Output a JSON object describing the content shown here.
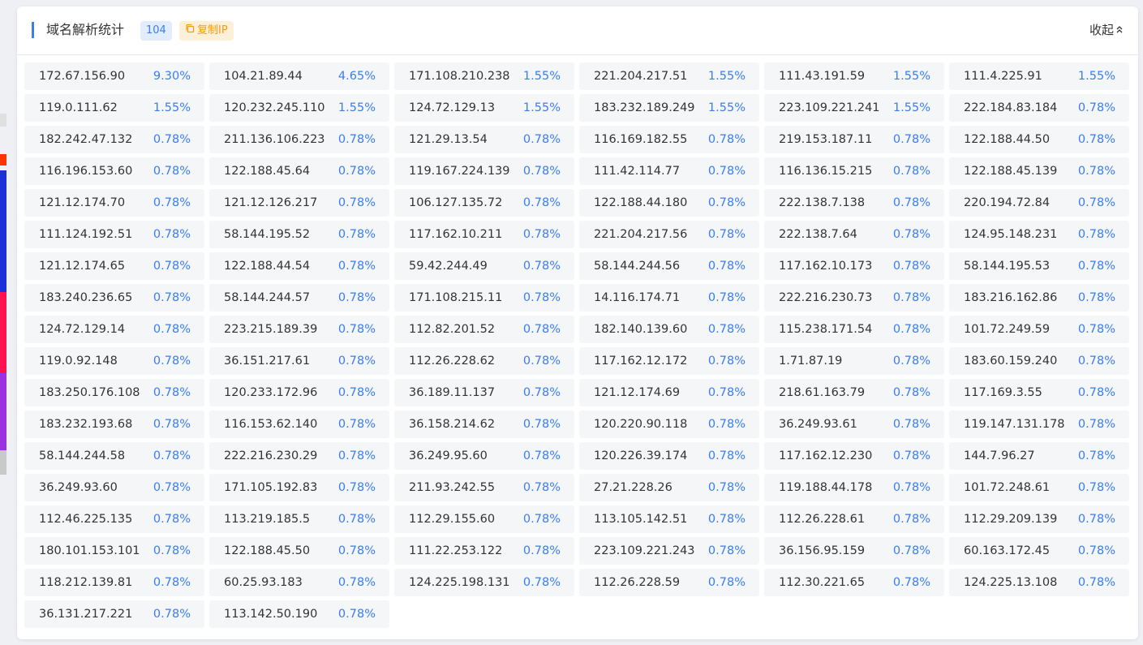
{
  "header": {
    "title": "域名解析统计",
    "count": "104",
    "copy_label": "复制IP",
    "collapse_label": "收起"
  },
  "colors": {
    "accent": "#3a7ef1",
    "copy_bg": "#fdf0d8",
    "copy_fg": "#f39c12",
    "cell_bg": "#f5f6f8"
  },
  "icons": {
    "copy": "copy-icon",
    "collapse": "chevron-up-double-icon"
  },
  "ips": [
    {
      "ip": "172.67.156.90",
      "pct": "9.30%"
    },
    {
      "ip": "104.21.89.44",
      "pct": "4.65%"
    },
    {
      "ip": "171.108.210.238",
      "pct": "1.55%"
    },
    {
      "ip": "221.204.217.51",
      "pct": "1.55%"
    },
    {
      "ip": "111.43.191.59",
      "pct": "1.55%"
    },
    {
      "ip": "111.4.225.91",
      "pct": "1.55%"
    },
    {
      "ip": "119.0.111.62",
      "pct": "1.55%"
    },
    {
      "ip": "120.232.245.110",
      "pct": "1.55%"
    },
    {
      "ip": "124.72.129.13",
      "pct": "1.55%"
    },
    {
      "ip": "183.232.189.249",
      "pct": "1.55%"
    },
    {
      "ip": "223.109.221.241",
      "pct": "1.55%"
    },
    {
      "ip": "222.184.83.184",
      "pct": "0.78%"
    },
    {
      "ip": "182.242.47.132",
      "pct": "0.78%"
    },
    {
      "ip": "211.136.106.223",
      "pct": "0.78%"
    },
    {
      "ip": "121.29.13.54",
      "pct": "0.78%"
    },
    {
      "ip": "116.169.182.55",
      "pct": "0.78%"
    },
    {
      "ip": "219.153.187.11",
      "pct": "0.78%"
    },
    {
      "ip": "122.188.44.50",
      "pct": "0.78%"
    },
    {
      "ip": "116.196.153.60",
      "pct": "0.78%"
    },
    {
      "ip": "122.188.45.64",
      "pct": "0.78%"
    },
    {
      "ip": "119.167.224.139",
      "pct": "0.78%"
    },
    {
      "ip": "111.42.114.77",
      "pct": "0.78%"
    },
    {
      "ip": "116.136.15.215",
      "pct": "0.78%"
    },
    {
      "ip": "122.188.45.139",
      "pct": "0.78%"
    },
    {
      "ip": "121.12.174.70",
      "pct": "0.78%"
    },
    {
      "ip": "121.12.126.217",
      "pct": "0.78%"
    },
    {
      "ip": "106.127.135.72",
      "pct": "0.78%"
    },
    {
      "ip": "122.188.44.180",
      "pct": "0.78%"
    },
    {
      "ip": "222.138.7.138",
      "pct": "0.78%"
    },
    {
      "ip": "220.194.72.84",
      "pct": "0.78%"
    },
    {
      "ip": "111.124.192.51",
      "pct": "0.78%"
    },
    {
      "ip": "58.144.195.52",
      "pct": "0.78%"
    },
    {
      "ip": "117.162.10.211",
      "pct": "0.78%"
    },
    {
      "ip": "221.204.217.56",
      "pct": "0.78%"
    },
    {
      "ip": "222.138.7.64",
      "pct": "0.78%"
    },
    {
      "ip": "124.95.148.231",
      "pct": "0.78%"
    },
    {
      "ip": "121.12.174.65",
      "pct": "0.78%"
    },
    {
      "ip": "122.188.44.54",
      "pct": "0.78%"
    },
    {
      "ip": "59.42.244.49",
      "pct": "0.78%"
    },
    {
      "ip": "58.144.244.56",
      "pct": "0.78%"
    },
    {
      "ip": "117.162.10.173",
      "pct": "0.78%"
    },
    {
      "ip": "58.144.195.53",
      "pct": "0.78%"
    },
    {
      "ip": "183.240.236.65",
      "pct": "0.78%"
    },
    {
      "ip": "58.144.244.57",
      "pct": "0.78%"
    },
    {
      "ip": "171.108.215.11",
      "pct": "0.78%"
    },
    {
      "ip": "14.116.174.71",
      "pct": "0.78%"
    },
    {
      "ip": "222.216.230.73",
      "pct": "0.78%"
    },
    {
      "ip": "183.216.162.86",
      "pct": "0.78%"
    },
    {
      "ip": "124.72.129.14",
      "pct": "0.78%"
    },
    {
      "ip": "223.215.189.39",
      "pct": "0.78%"
    },
    {
      "ip": "112.82.201.52",
      "pct": "0.78%"
    },
    {
      "ip": "182.140.139.60",
      "pct": "0.78%"
    },
    {
      "ip": "115.238.171.54",
      "pct": "0.78%"
    },
    {
      "ip": "101.72.249.59",
      "pct": "0.78%"
    },
    {
      "ip": "119.0.92.148",
      "pct": "0.78%"
    },
    {
      "ip": "36.151.217.61",
      "pct": "0.78%"
    },
    {
      "ip": "112.26.228.62",
      "pct": "0.78%"
    },
    {
      "ip": "117.162.12.172",
      "pct": "0.78%"
    },
    {
      "ip": "1.71.87.19",
      "pct": "0.78%"
    },
    {
      "ip": "183.60.159.240",
      "pct": "0.78%"
    },
    {
      "ip": "183.250.176.108",
      "pct": "0.78%"
    },
    {
      "ip": "120.233.172.96",
      "pct": "0.78%"
    },
    {
      "ip": "36.189.11.137",
      "pct": "0.78%"
    },
    {
      "ip": "121.12.174.69",
      "pct": "0.78%"
    },
    {
      "ip": "218.61.163.79",
      "pct": "0.78%"
    },
    {
      "ip": "117.169.3.55",
      "pct": "0.78%"
    },
    {
      "ip": "183.232.193.68",
      "pct": "0.78%"
    },
    {
      "ip": "116.153.62.140",
      "pct": "0.78%"
    },
    {
      "ip": "36.158.214.62",
      "pct": "0.78%"
    },
    {
      "ip": "120.220.90.118",
      "pct": "0.78%"
    },
    {
      "ip": "36.249.93.61",
      "pct": "0.78%"
    },
    {
      "ip": "119.147.131.178",
      "pct": "0.78%"
    },
    {
      "ip": "58.144.244.58",
      "pct": "0.78%"
    },
    {
      "ip": "222.216.230.29",
      "pct": "0.78%"
    },
    {
      "ip": "36.249.95.60",
      "pct": "0.78%"
    },
    {
      "ip": "120.226.39.174",
      "pct": "0.78%"
    },
    {
      "ip": "117.162.12.230",
      "pct": "0.78%"
    },
    {
      "ip": "144.7.96.27",
      "pct": "0.78%"
    },
    {
      "ip": "36.249.93.60",
      "pct": "0.78%"
    },
    {
      "ip": "171.105.192.83",
      "pct": "0.78%"
    },
    {
      "ip": "211.93.242.55",
      "pct": "0.78%"
    },
    {
      "ip": "27.21.228.26",
      "pct": "0.78%"
    },
    {
      "ip": "119.188.44.178",
      "pct": "0.78%"
    },
    {
      "ip": "101.72.248.61",
      "pct": "0.78%"
    },
    {
      "ip": "112.46.225.135",
      "pct": "0.78%"
    },
    {
      "ip": "113.219.185.5",
      "pct": "0.78%"
    },
    {
      "ip": "112.29.155.60",
      "pct": "0.78%"
    },
    {
      "ip": "113.105.142.51",
      "pct": "0.78%"
    },
    {
      "ip": "112.26.228.61",
      "pct": "0.78%"
    },
    {
      "ip": "112.29.209.139",
      "pct": "0.78%"
    },
    {
      "ip": "180.101.153.101",
      "pct": "0.78%"
    },
    {
      "ip": "122.188.45.50",
      "pct": "0.78%"
    },
    {
      "ip": "111.22.253.122",
      "pct": "0.78%"
    },
    {
      "ip": "223.109.221.243",
      "pct": "0.78%"
    },
    {
      "ip": "36.156.95.159",
      "pct": "0.78%"
    },
    {
      "ip": "60.163.172.45",
      "pct": "0.78%"
    },
    {
      "ip": "118.212.139.81",
      "pct": "0.78%"
    },
    {
      "ip": "60.25.93.183",
      "pct": "0.78%"
    },
    {
      "ip": "124.225.198.131",
      "pct": "0.78%"
    },
    {
      "ip": "112.26.228.59",
      "pct": "0.78%"
    },
    {
      "ip": "112.30.221.65",
      "pct": "0.78%"
    },
    {
      "ip": "124.225.13.108",
      "pct": "0.78%"
    },
    {
      "ip": "36.131.217.221",
      "pct": "0.78%"
    },
    {
      "ip": "113.142.50.190",
      "pct": "0.78%"
    }
  ]
}
